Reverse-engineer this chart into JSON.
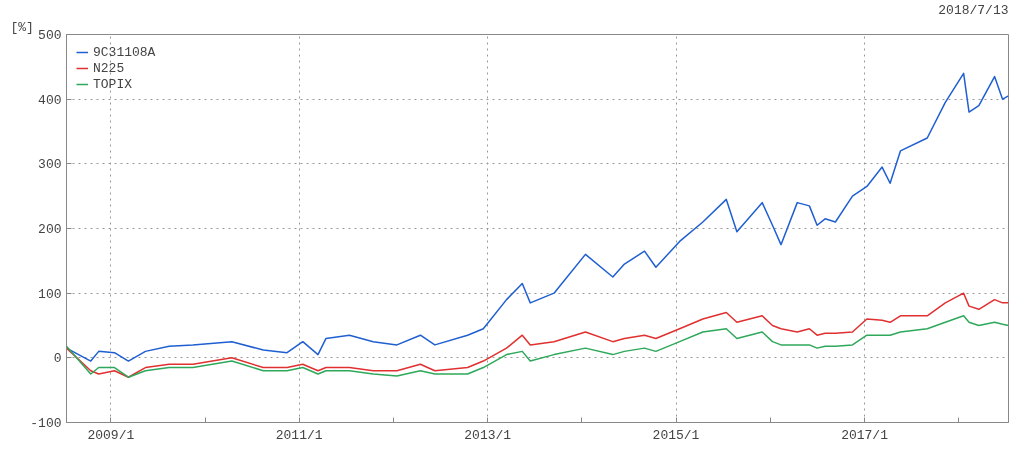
{
  "chart_data": {
    "type": "line",
    "subtitle": "2018/7/13",
    "ylabel": "[%]",
    "x": [
      "2008-07-13",
      "2008-10-15",
      "2008-11-15",
      "2009-01-15",
      "2009-03-10",
      "2009-05-15",
      "2009-08-15",
      "2009-11-15",
      "2010-04-15",
      "2010-08-15",
      "2010-11-15",
      "2011-01-15",
      "2011-03-15",
      "2011-04-15",
      "2011-07-15",
      "2011-10-15",
      "2012-01-15",
      "2012-04-15",
      "2012-06-10",
      "2012-10-15",
      "2012-12-15",
      "2013-03-15",
      "2013-05-15",
      "2013-06-15",
      "2013-09-15",
      "2014-01-15",
      "2014-05-01",
      "2014-06-15",
      "2014-09-01",
      "2014-10-15",
      "2015-01-15",
      "2015-04-15",
      "2015-07-15",
      "2015-08-25",
      "2015-12-01",
      "2016-01-10",
      "2016-02-12",
      "2016-04-15",
      "2016-06-01",
      "2016-07-01",
      "2016-08-01",
      "2016-09-10",
      "2016-11-15",
      "2017-01-10",
      "2017-03-10",
      "2017-04-10",
      "2017-05-20",
      "2017-09-01",
      "2017-11-10",
      "2018-01-20",
      "2018-02-10",
      "2018-03-20",
      "2018-05-20",
      "2018-06-20",
      "2018-07-13"
    ],
    "series": [
      {
        "name": "9C31108A",
        "color": "#1f5fd1",
        "values": [
          15,
          -5,
          10,
          8,
          -5,
          10,
          18,
          20,
          25,
          12,
          8,
          25,
          5,
          30,
          35,
          25,
          20,
          35,
          20,
          35,
          45,
          90,
          115,
          85,
          100,
          160,
          125,
          145,
          165,
          140,
          180,
          210,
          245,
          195,
          240,
          205,
          175,
          240,
          235,
          205,
          215,
          210,
          250,
          265,
          295,
          270,
          320,
          340,
          395,
          440,
          380,
          390,
          435,
          400,
          405
        ]
      },
      {
        "name": "N225",
        "color": "#e03030",
        "values": [
          15,
          -20,
          -25,
          -20,
          -30,
          -15,
          -10,
          -10,
          0,
          -15,
          -15,
          -10,
          -20,
          -15,
          -15,
          -20,
          -20,
          -10,
          -20,
          -15,
          -5,
          15,
          35,
          20,
          25,
          40,
          25,
          30,
          35,
          30,
          45,
          60,
          70,
          55,
          65,
          50,
          45,
          40,
          45,
          35,
          38,
          38,
          40,
          60,
          58,
          55,
          65,
          65,
          85,
          100,
          80,
          75,
          90,
          85,
          85
        ]
      },
      {
        "name": "TOPIX",
        "color": "#2ea85a",
        "values": [
          18,
          -25,
          -15,
          -15,
          -30,
          -20,
          -15,
          -15,
          -5,
          -20,
          -20,
          -15,
          -25,
          -20,
          -20,
          -25,
          -28,
          -20,
          -25,
          -25,
          -15,
          5,
          10,
          -5,
          5,
          15,
          5,
          10,
          15,
          10,
          25,
          40,
          45,
          30,
          40,
          25,
          20,
          20,
          20,
          15,
          18,
          18,
          20,
          35,
          35,
          35,
          40,
          45,
          55,
          65,
          55,
          50,
          55,
          52,
          50
        ]
      }
    ],
    "xlim": [
      "2008-07-13",
      "2018-07-13"
    ],
    "xticks": [
      {
        "value": "2009-01-01",
        "label": "2009/1"
      },
      {
        "value": "2010-01-01",
        "label": null
      },
      {
        "value": "2011-01-01",
        "label": "2011/1"
      },
      {
        "value": "2012-01-01",
        "label": null
      },
      {
        "value": "2013-01-01",
        "label": "2013/1"
      },
      {
        "value": "2014-01-01",
        "label": null
      },
      {
        "value": "2015-01-01",
        "label": "2015/1"
      },
      {
        "value": "2016-01-01",
        "label": null
      },
      {
        "value": "2017-01-01",
        "label": "2017/1"
      },
      {
        "value": "2018-01-01",
        "label": null
      }
    ],
    "ylim": [
      -100,
      500
    ],
    "yticks": [
      -100,
      0,
      100,
      200,
      300,
      400,
      500
    ],
    "grid": true,
    "legend": "top left"
  }
}
